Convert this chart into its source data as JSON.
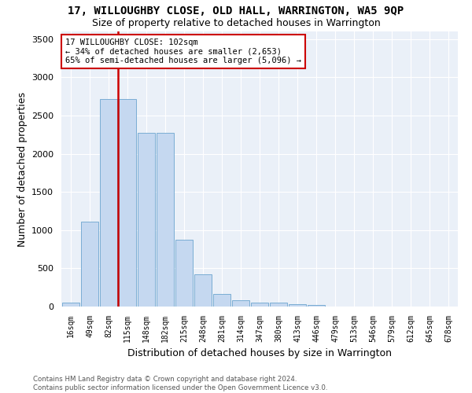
{
  "title": "17, WILLOUGHBY CLOSE, OLD HALL, WARRINGTON, WA5 9QP",
  "subtitle": "Size of property relative to detached houses in Warrington",
  "xlabel": "Distribution of detached houses by size in Warrington",
  "ylabel": "Number of detached properties",
  "bar_labels": [
    "16sqm",
    "49sqm",
    "82sqm",
    "115sqm",
    "148sqm",
    "182sqm",
    "215sqm",
    "248sqm",
    "281sqm",
    "314sqm",
    "347sqm",
    "380sqm",
    "413sqm",
    "446sqm",
    "479sqm",
    "513sqm",
    "546sqm",
    "579sqm",
    "612sqm",
    "645sqm",
    "678sqm"
  ],
  "bar_values": [
    50,
    1110,
    2720,
    2720,
    2270,
    2270,
    870,
    420,
    165,
    80,
    55,
    50,
    30,
    25,
    0,
    0,
    0,
    0,
    0,
    0,
    0
  ],
  "bar_color": "#c5d8f0",
  "bar_edge_color": "#7aadd4",
  "vline_color": "#cc0000",
  "vline_pos": 2.5,
  "annotation_text": "17 WILLOUGHBY CLOSE: 102sqm\n← 34% of detached houses are smaller (2,653)\n65% of semi-detached houses are larger (5,096) →",
  "annotation_box_color": "#ffffff",
  "annotation_box_edge": "#cc0000",
  "ylim": [
    0,
    3600
  ],
  "yticks": [
    0,
    500,
    1000,
    1500,
    2000,
    2500,
    3000,
    3500
  ],
  "bg_color": "#eaf0f8",
  "grid_color": "#ffffff",
  "footer": "Contains HM Land Registry data © Crown copyright and database right 2024.\nContains public sector information licensed under the Open Government Licence v3.0.",
  "title_fontsize": 10,
  "subtitle_fontsize": 9,
  "xlabel_fontsize": 9,
  "ylabel_fontsize": 9,
  "tick_fontsize": 8,
  "xtick_fontsize": 7
}
